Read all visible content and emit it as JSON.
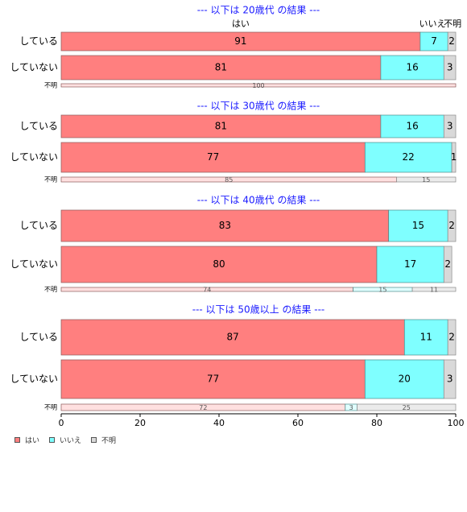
{
  "chart_data": {
    "type": "bar",
    "orientation": "horizontal",
    "stacked": true,
    "percent": true,
    "xlim": [
      0,
      100
    ],
    "xticks": [
      "0",
      "20",
      "40",
      "60",
      "80",
      "100"
    ],
    "legend": {
      "position": "bottom-left",
      "items": [
        {
          "label": "はい",
          "color": "#FF7F7F"
        },
        {
          "label": "いいえ",
          "color": "#7FFFFF"
        },
        {
          "label": "不明",
          "color": "#D9D9D9"
        }
      ]
    },
    "segment_labels": [
      "はい",
      "いいえ",
      "不明"
    ],
    "groups": [
      {
        "title": "--- 以下は 20歳代 の結果 ---",
        "rows": [
          {
            "label": "している",
            "values": [
              91,
              7,
              2
            ],
            "value_labels": [
              "91",
              "7",
              "2"
            ]
          },
          {
            "label": "していない",
            "values": [
              81,
              16,
              3
            ],
            "value_labels": [
              "81",
              "16",
              "3"
            ]
          },
          {
            "label": "不明",
            "values": [
              100,
              0,
              0
            ],
            "value_labels": [
              "100",
              "",
              ""
            ]
          }
        ]
      },
      {
        "title": "--- 以下は 30歳代 の結果 ---",
        "rows": [
          {
            "label": "している",
            "values": [
              81,
              16,
              3
            ],
            "value_labels": [
              "81",
              "16",
              "3"
            ]
          },
          {
            "label": "していない",
            "values": [
              77,
              22,
              1
            ],
            "value_labels": [
              "77",
              "22",
              "1"
            ]
          },
          {
            "label": "不明",
            "values": [
              85,
              0,
              15
            ],
            "value_labels": [
              "85",
              "",
              "15"
            ]
          }
        ]
      },
      {
        "title": "--- 以下は 40歳代 の結果 ---",
        "rows": [
          {
            "label": "している",
            "values": [
              83,
              15,
              2
            ],
            "value_labels": [
              "83",
              "15",
              "2"
            ]
          },
          {
            "label": "していない",
            "values": [
              80,
              17,
              2
            ],
            "value_labels": [
              "80",
              "17",
              "2"
            ]
          },
          {
            "label": "不明",
            "values": [
              74,
              15,
              11
            ],
            "value_labels": [
              "74",
              "15",
              "11"
            ]
          }
        ]
      },
      {
        "title": "--- 以下は 50歳以上 の結果 ---",
        "rows": [
          {
            "label": "している",
            "values": [
              87,
              11,
              2
            ],
            "value_labels": [
              "87",
              "11",
              "2"
            ]
          },
          {
            "label": "していない",
            "values": [
              77,
              20,
              3
            ],
            "value_labels": [
              "77",
              "20",
              "3"
            ]
          },
          {
            "label": "不明",
            "values": [
              72,
              3,
              25
            ],
            "value_labels": [
              "72",
              "3",
              "25"
            ]
          }
        ]
      }
    ]
  }
}
